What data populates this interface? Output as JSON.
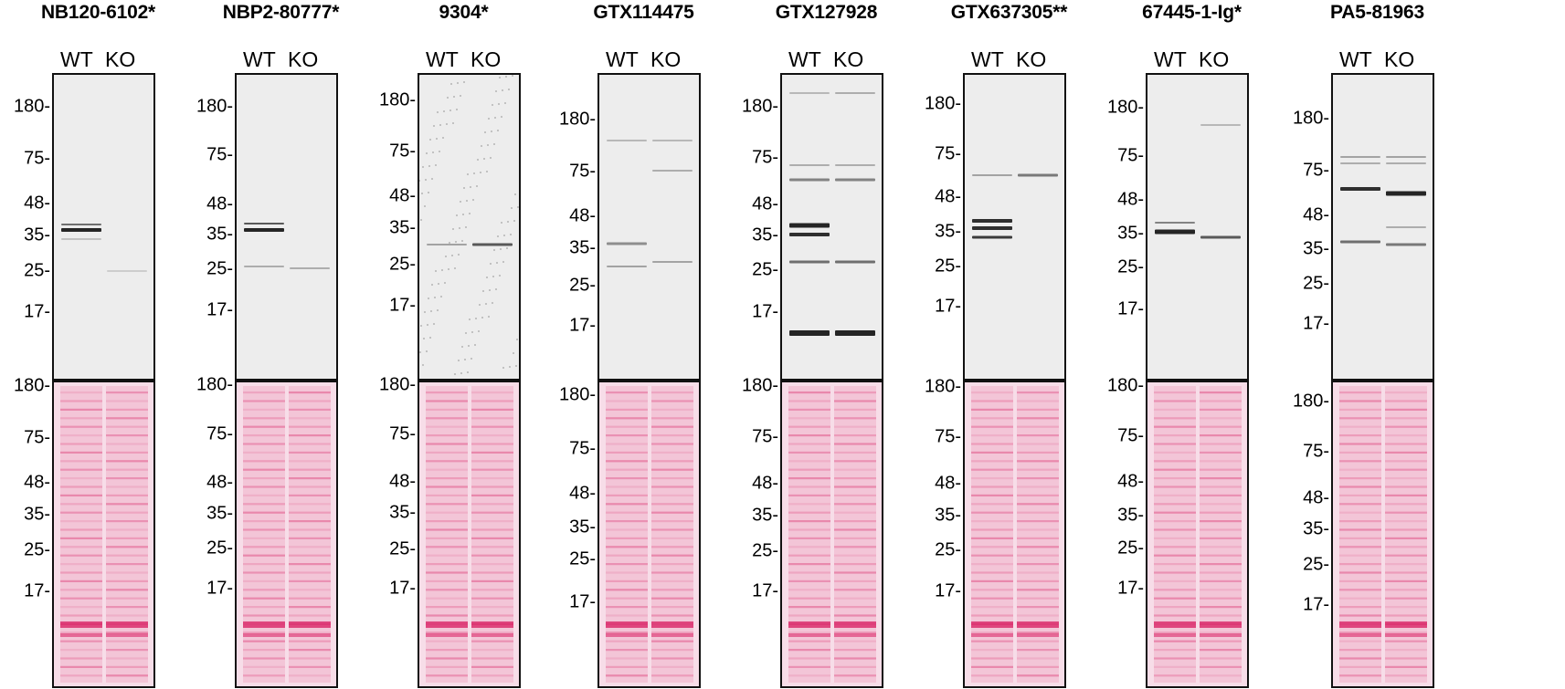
{
  "lane_labels": [
    "WT",
    "KO"
  ],
  "antibodies": [
    {
      "name": "NB120-6102*",
      "top_markers": [
        "180-",
        "75-",
        "48-",
        "35-",
        "25-",
        "17-"
      ],
      "bottom_markers": [
        "180-",
        "75-",
        "48-",
        "35-",
        "25-",
        "17-"
      ]
    },
    {
      "name": "NBP2-80777*",
      "top_markers": [
        "180-",
        "75-",
        "48-",
        "35-",
        "25-",
        "17-"
      ],
      "bottom_markers": [
        "180-",
        "75-",
        "48-",
        "35-",
        "25-",
        "17-"
      ]
    },
    {
      "name": "9304*",
      "top_markers": [
        "180-",
        "75-",
        "48-",
        "35-",
        "25-",
        "17-"
      ],
      "bottom_markers": [
        "180-",
        "75-",
        "48-",
        "35-",
        "25-",
        "17-"
      ]
    },
    {
      "name": "GTX114475",
      "top_markers": [
        "180-",
        "75-",
        "48-",
        "35-",
        "25-",
        "17-"
      ],
      "bottom_markers": [
        "180-",
        "75-",
        "48-",
        "35-",
        "25-",
        "17-"
      ]
    },
    {
      "name": "GTX127928",
      "top_markers": [
        "180-",
        "75-",
        "48-",
        "35-",
        "25-",
        "17-"
      ],
      "bottom_markers": [
        "180-",
        "75-",
        "48-",
        "35-",
        "25-",
        "17-"
      ]
    },
    {
      "name": "GTX637305**",
      "top_markers": [
        "180-",
        "75-",
        "48-",
        "35-",
        "25-",
        "17-"
      ],
      "bottom_markers": [
        "180-",
        "75-",
        "48-",
        "35-",
        "25-",
        "17-"
      ]
    },
    {
      "name": "67445-1-Ig*",
      "top_markers": [
        "180-",
        "75-",
        "48-",
        "35-",
        "25-",
        "17-"
      ],
      "bottom_markers": [
        "180-",
        "75-",
        "48-",
        "35-",
        "25-",
        "17-"
      ]
    },
    {
      "name": "PA5-81963",
      "top_markers": [
        "180-",
        "75-",
        "48-",
        "35-",
        "25-",
        "17-"
      ],
      "bottom_markers": [
        "180-",
        "75-",
        "48-",
        "35-",
        "25-",
        "17-"
      ]
    }
  ],
  "colors": {
    "blot_background": "#ededed",
    "band": "#1a1a1a",
    "ponceau_background": "#f7dde8",
    "ponceau_band": "#d81b60"
  }
}
